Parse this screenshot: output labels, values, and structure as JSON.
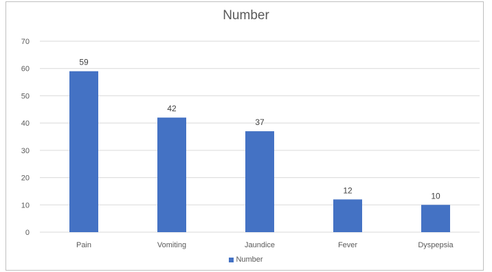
{
  "chart_data": {
    "type": "bar",
    "title": "Number",
    "categories": [
      "Pain",
      "Vomiting",
      "Jaundice",
      "Fever",
      "Dyspepsia"
    ],
    "series": [
      {
        "name": "Number",
        "values": [
          59,
          42,
          37,
          12,
          10
        ],
        "color": "#4472c4"
      }
    ],
    "ylim": [
      0,
      70
    ],
    "yticks": [
      0,
      10,
      20,
      30,
      40,
      50,
      60,
      70
    ],
    "grid": true,
    "data_labels": true,
    "legend": "bottom"
  },
  "colors": {
    "bar": "#4472c4",
    "grid": "#d9d9d9",
    "text": "#595959"
  }
}
